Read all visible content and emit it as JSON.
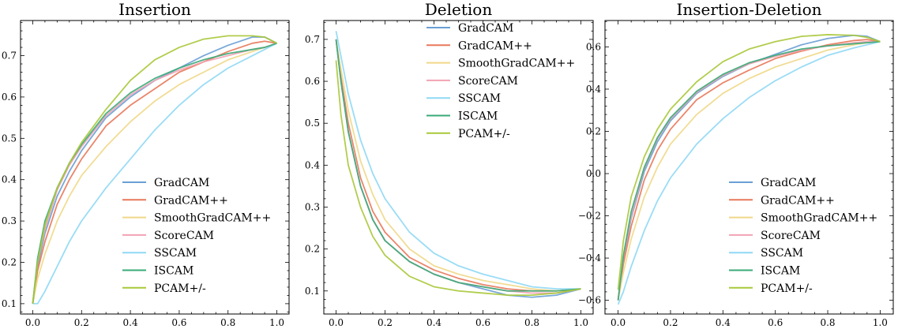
{
  "chart_data": [
    {
      "type": "line",
      "title": "Insertion",
      "xlim": [
        -0.05,
        1.05
      ],
      "ylim": [
        0.075,
        0.785
      ],
      "xticks": [
        "0.0",
        "0.2",
        "0.4",
        "0.6",
        "0.8",
        "1.0"
      ],
      "yticks": [
        "0.1",
        "0.2",
        "0.3",
        "0.4",
        "0.5",
        "0.6",
        "0.7"
      ],
      "legend_position": "lower-right",
      "series": [
        {
          "name": "GradCAM",
          "color": "#6a9fd4",
          "x": [
            0,
            0.02,
            0.05,
            0.1,
            0.15,
            0.2,
            0.3,
            0.4,
            0.5,
            0.6,
            0.7,
            0.8,
            0.9,
            0.95,
            1.0
          ],
          "y": [
            0.1,
            0.19,
            0.27,
            0.36,
            0.42,
            0.47,
            0.55,
            0.6,
            0.64,
            0.67,
            0.7,
            0.725,
            0.745,
            0.745,
            0.73
          ]
        },
        {
          "name": "GradCAM++",
          "color": "#e8785a",
          "x": [
            0,
            0.02,
            0.05,
            0.1,
            0.15,
            0.2,
            0.3,
            0.4,
            0.5,
            0.6,
            0.7,
            0.8,
            0.9,
            0.95,
            1.0
          ],
          "y": [
            0.1,
            0.18,
            0.25,
            0.34,
            0.4,
            0.45,
            0.53,
            0.58,
            0.62,
            0.66,
            0.685,
            0.71,
            0.73,
            0.735,
            0.73
          ]
        },
        {
          "name": "SmoothGradCAM++",
          "color": "#f0d888",
          "x": [
            0,
            0.02,
            0.05,
            0.1,
            0.15,
            0.2,
            0.3,
            0.4,
            0.5,
            0.6,
            0.7,
            0.8,
            0.9,
            0.95,
            1.0
          ],
          "y": [
            0.1,
            0.16,
            0.22,
            0.3,
            0.36,
            0.41,
            0.48,
            0.54,
            0.59,
            0.63,
            0.66,
            0.69,
            0.71,
            0.72,
            0.73
          ]
        },
        {
          "name": "ScoreCAM",
          "color": "#f2a2b2",
          "x": [
            0,
            0.02,
            0.05,
            0.1,
            0.15,
            0.2,
            0.3,
            0.4,
            0.5,
            0.6,
            0.7,
            0.8,
            0.9,
            0.95,
            1.0
          ],
          "y": [
            0.1,
            0.2,
            0.28,
            0.375,
            0.435,
            0.48,
            0.555,
            0.605,
            0.64,
            0.665,
            0.685,
            0.7,
            0.715,
            0.72,
            0.73
          ]
        },
        {
          "name": "SSCAM",
          "color": "#8fd8f5",
          "x": [
            0,
            0.02,
            0.05,
            0.1,
            0.15,
            0.2,
            0.3,
            0.4,
            0.5,
            0.6,
            0.7,
            0.8,
            0.9,
            0.95,
            1.0
          ],
          "y": [
            0.1,
            0.1,
            0.13,
            0.19,
            0.25,
            0.3,
            0.38,
            0.45,
            0.52,
            0.58,
            0.63,
            0.67,
            0.7,
            0.715,
            0.73
          ]
        },
        {
          "name": "ISCAM",
          "color": "#3aaa78",
          "x": [
            0,
            0.02,
            0.05,
            0.1,
            0.15,
            0.2,
            0.3,
            0.4,
            0.5,
            0.6,
            0.7,
            0.8,
            0.9,
            0.95,
            1.0
          ],
          "y": [
            0.1,
            0.21,
            0.3,
            0.38,
            0.44,
            0.485,
            0.56,
            0.61,
            0.645,
            0.67,
            0.69,
            0.705,
            0.715,
            0.72,
            0.73
          ]
        },
        {
          "name": "PCAM+/-",
          "color": "#a8c83a",
          "x": [
            0,
            0.02,
            0.05,
            0.1,
            0.15,
            0.2,
            0.3,
            0.4,
            0.5,
            0.6,
            0.7,
            0.8,
            0.9,
            0.95,
            1.0
          ],
          "y": [
            0.1,
            0.2,
            0.29,
            0.38,
            0.44,
            0.49,
            0.57,
            0.64,
            0.69,
            0.72,
            0.74,
            0.748,
            0.748,
            0.745,
            0.73
          ]
        }
      ]
    },
    {
      "type": "line",
      "title": "Deletion",
      "xlim": [
        -0.05,
        1.05
      ],
      "ylim": [
        0.045,
        0.745
      ],
      "xticks": [
        "0.0",
        "0.2",
        "0.4",
        "0.6",
        "0.8",
        "1.0"
      ],
      "yticks": [
        "0.1",
        "0.2",
        "0.3",
        "0.4",
        "0.5",
        "0.6",
        "0.7"
      ],
      "legend_position": "upper-right",
      "series": [
        {
          "name": "GradCAM",
          "color": "#6a9fd4",
          "x": [
            0,
            0.02,
            0.05,
            0.1,
            0.15,
            0.2,
            0.3,
            0.4,
            0.5,
            0.6,
            0.7,
            0.8,
            0.9,
            1.0
          ],
          "y": [
            0.7,
            0.6,
            0.48,
            0.35,
            0.27,
            0.22,
            0.17,
            0.14,
            0.12,
            0.105,
            0.09,
            0.085,
            0.09,
            0.105
          ]
        },
        {
          "name": "GradCAM++",
          "color": "#e8785a",
          "x": [
            0,
            0.02,
            0.05,
            0.1,
            0.15,
            0.2,
            0.3,
            0.4,
            0.5,
            0.6,
            0.7,
            0.8,
            0.9,
            1.0
          ],
          "y": [
            0.7,
            0.61,
            0.5,
            0.37,
            0.29,
            0.24,
            0.18,
            0.15,
            0.13,
            0.115,
            0.105,
            0.1,
            0.1,
            0.105
          ]
        },
        {
          "name": "SmoothGradCAM++",
          "color": "#f0d888",
          "x": [
            0,
            0.02,
            0.05,
            0.1,
            0.15,
            0.2,
            0.3,
            0.4,
            0.5,
            0.6,
            0.7,
            0.8,
            0.9,
            1.0
          ],
          "y": [
            0.7,
            0.63,
            0.53,
            0.41,
            0.33,
            0.27,
            0.2,
            0.16,
            0.14,
            0.125,
            0.115,
            0.105,
            0.1,
            0.105
          ]
        },
        {
          "name": "ScoreCAM",
          "color": "#f2a2b2",
          "x": [
            0,
            0.02,
            0.05,
            0.1,
            0.15,
            0.2,
            0.3,
            0.4,
            0.5,
            0.6,
            0.7,
            0.8,
            0.9,
            1.0
          ],
          "y": [
            0.7,
            0.6,
            0.48,
            0.35,
            0.27,
            0.22,
            0.17,
            0.14,
            0.12,
            0.11,
            0.1,
            0.095,
            0.095,
            0.105
          ]
        },
        {
          "name": "SSCAM",
          "color": "#8fd8f5",
          "x": [
            0,
            0.02,
            0.05,
            0.1,
            0.15,
            0.2,
            0.3,
            0.4,
            0.5,
            0.6,
            0.7,
            0.8,
            0.9,
            1.0
          ],
          "y": [
            0.72,
            0.66,
            0.57,
            0.46,
            0.38,
            0.32,
            0.24,
            0.19,
            0.16,
            0.14,
            0.125,
            0.11,
            0.105,
            0.105
          ]
        },
        {
          "name": "ISCAM",
          "color": "#3aaa78",
          "x": [
            0,
            0.02,
            0.05,
            0.1,
            0.15,
            0.2,
            0.3,
            0.4,
            0.5,
            0.6,
            0.7,
            0.8,
            0.9,
            1.0
          ],
          "y": [
            0.7,
            0.6,
            0.48,
            0.35,
            0.27,
            0.22,
            0.17,
            0.14,
            0.12,
            0.11,
            0.1,
            0.1,
            0.1,
            0.105
          ]
        },
        {
          "name": "PCAM+/-",
          "color": "#a8c83a",
          "x": [
            0,
            0.02,
            0.05,
            0.1,
            0.15,
            0.2,
            0.3,
            0.4,
            0.5,
            0.6,
            0.7,
            0.8,
            0.9,
            1.0
          ],
          "y": [
            0.65,
            0.52,
            0.4,
            0.3,
            0.23,
            0.185,
            0.135,
            0.11,
            0.1,
            0.095,
            0.09,
            0.09,
            0.095,
            0.105
          ]
        }
      ]
    },
    {
      "type": "line",
      "title": "Insertion-Deletion",
      "xlim": [
        -0.05,
        1.05
      ],
      "ylim": [
        -0.665,
        0.725
      ],
      "xticks": [
        "0.0",
        "0.2",
        "0.4",
        "0.6",
        "0.8",
        "1.0"
      ],
      "yticks": [
        "−0.6",
        "−0.4",
        "−0.2",
        "0.0",
        "0.2",
        "0.4",
        "0.6"
      ],
      "legend_position": "lower-right",
      "series": [
        {
          "name": "GradCAM",
          "color": "#6a9fd4",
          "x": [
            0,
            0.02,
            0.05,
            0.1,
            0.15,
            0.2,
            0.3,
            0.4,
            0.5,
            0.6,
            0.7,
            0.8,
            0.9,
            0.95,
            1.0
          ],
          "y": [
            -0.6,
            -0.41,
            -0.21,
            0.01,
            0.15,
            0.25,
            0.38,
            0.46,
            0.52,
            0.565,
            0.61,
            0.64,
            0.655,
            0.65,
            0.625
          ]
        },
        {
          "name": "GradCAM++",
          "color": "#e8785a",
          "x": [
            0,
            0.02,
            0.05,
            0.1,
            0.15,
            0.2,
            0.3,
            0.4,
            0.5,
            0.6,
            0.7,
            0.8,
            0.9,
            0.95,
            1.0
          ],
          "y": [
            -0.6,
            -0.43,
            -0.25,
            -0.03,
            0.11,
            0.21,
            0.35,
            0.43,
            0.49,
            0.545,
            0.58,
            0.61,
            0.63,
            0.635,
            0.625
          ]
        },
        {
          "name": "SmoothGradCAM++",
          "color": "#f0d888",
          "x": [
            0,
            0.02,
            0.05,
            0.1,
            0.15,
            0.2,
            0.3,
            0.4,
            0.5,
            0.6,
            0.7,
            0.8,
            0.9,
            0.95,
            1.0
          ],
          "y": [
            -0.6,
            -0.47,
            -0.31,
            -0.11,
            0.03,
            0.14,
            0.28,
            0.38,
            0.45,
            0.505,
            0.545,
            0.585,
            0.61,
            0.62,
            0.625
          ]
        },
        {
          "name": "ScoreCAM",
          "color": "#f2a2b2",
          "x": [
            0,
            0.02,
            0.05,
            0.1,
            0.15,
            0.2,
            0.3,
            0.4,
            0.5,
            0.6,
            0.7,
            0.8,
            0.9,
            0.95,
            1.0
          ],
          "y": [
            -0.6,
            -0.4,
            -0.2,
            0.025,
            0.165,
            0.26,
            0.385,
            0.465,
            0.52,
            0.555,
            0.585,
            0.605,
            0.62,
            0.625,
            0.625
          ]
        },
        {
          "name": "SSCAM",
          "color": "#8fd8f5",
          "x": [
            0,
            0.02,
            0.05,
            0.1,
            0.15,
            0.2,
            0.3,
            0.4,
            0.5,
            0.6,
            0.7,
            0.8,
            0.9,
            0.95,
            1.0
          ],
          "y": [
            -0.62,
            -0.56,
            -0.44,
            -0.27,
            -0.13,
            -0.02,
            0.14,
            0.26,
            0.36,
            0.44,
            0.505,
            0.56,
            0.595,
            0.61,
            0.625
          ]
        },
        {
          "name": "ISCAM",
          "color": "#3aaa78",
          "x": [
            0,
            0.02,
            0.05,
            0.1,
            0.15,
            0.2,
            0.3,
            0.4,
            0.5,
            0.6,
            0.7,
            0.8,
            0.9,
            0.95,
            1.0
          ],
          "y": [
            -0.6,
            -0.39,
            -0.18,
            0.03,
            0.17,
            0.265,
            0.39,
            0.47,
            0.525,
            0.56,
            0.59,
            0.605,
            0.615,
            0.62,
            0.625
          ]
        },
        {
          "name": "PCAM+/-",
          "color": "#a8c83a",
          "x": [
            0,
            0.02,
            0.05,
            0.1,
            0.15,
            0.2,
            0.3,
            0.4,
            0.5,
            0.6,
            0.7,
            0.8,
            0.9,
            0.95,
            1.0
          ],
          "y": [
            -0.55,
            -0.32,
            -0.11,
            0.08,
            0.21,
            0.305,
            0.435,
            0.53,
            0.59,
            0.625,
            0.65,
            0.658,
            0.655,
            0.645,
            0.625
          ]
        }
      ]
    }
  ]
}
